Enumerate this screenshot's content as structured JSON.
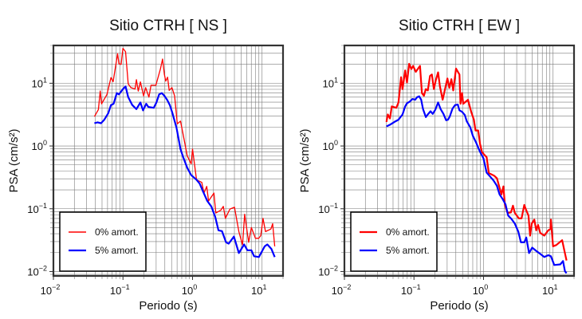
{
  "chart_data": [
    {
      "type": "line",
      "title": "Sitio CTRH [ NS ]",
      "xlabel": "Periodo (s)",
      "ylabel": "PSA (cm/s²)",
      "xscale": "log",
      "yscale": "log",
      "xlim": [
        0.01,
        20
      ],
      "ylim": [
        0.0085,
        40
      ],
      "grid": true,
      "legend_position": "bottom-left",
      "xticks": [
        {
          "base": "10",
          "exp": "−2",
          "v": 0.01
        },
        {
          "base": "10",
          "exp": "−1",
          "v": 0.1
        },
        {
          "base": "10",
          "exp": "0",
          "v": 1
        },
        {
          "base": "10",
          "exp": "1",
          "v": 10
        }
      ],
      "yticks": [
        {
          "base": "10",
          "exp": "−2",
          "v": 0.01
        },
        {
          "base": "10",
          "exp": "−1",
          "v": 0.1
        },
        {
          "base": "10",
          "exp": "0",
          "v": 1
        },
        {
          "base": "10",
          "exp": "1",
          "v": 10
        }
      ],
      "series": [
        {
          "name": "0% amort.",
          "color": "#ff0000",
          "x": [
            0.0388,
            0.0443,
            0.0471,
            0.0492,
            0.0588,
            0.0672,
            0.0721,
            0.0838,
            0.0876,
            0.094,
            0.1,
            0.109,
            0.119,
            0.13,
            0.149,
            0.156,
            0.166,
            0.178,
            0.198,
            0.212,
            0.236,
            0.253,
            0.297,
            0.345,
            0.371,
            0.394,
            0.412,
            0.438,
            0.462,
            0.506,
            0.552,
            0.604,
            0.671,
            0.733,
            0.838,
            0.957,
            1.0,
            1.14,
            1.36,
            1.46,
            1.6,
            1.7,
            2.03,
            2.16,
            2.54,
            2.77,
            2.97,
            3.45,
            4.01,
            4.63,
            5.24,
            5.62,
            6.42,
            7.02,
            8.02,
            8.92,
            9.57,
            10.3,
            11.2,
            13.4,
            14.2,
            15.2
          ],
          "y": [
            2.94,
            3.8,
            7.5,
            4.7,
            6.6,
            12.3,
            10.6,
            29.6,
            20.4,
            20,
            36,
            31.7,
            9.8,
            8.5,
            8.1,
            11.4,
            7.5,
            10.5,
            6.3,
            8.5,
            6.0,
            9.3,
            9.3,
            16.8,
            24.3,
            13.8,
            10.8,
            12.5,
            7.7,
            8.5,
            6.3,
            2.26,
            2.49,
            1.53,
            0.7,
            0.52,
            0.89,
            0.29,
            0.263,
            0.178,
            0.227,
            0.133,
            0.178,
            0.0855,
            0.0944,
            0.109,
            0.0703,
            0.099,
            0.106,
            0.0432,
            0.0265,
            0.0815,
            0.0292,
            0.05,
            0.0338,
            0.0338,
            0.0373,
            0.0703,
            0.0432,
            0.0475,
            0.0578,
            0.0252
          ]
        },
        {
          "name": "5% amort.",
          "color": "#0000ff",
          "x": [
            0.0388,
            0.0431,
            0.0484,
            0.0538,
            0.0614,
            0.0672,
            0.0733,
            0.0816,
            0.0876,
            0.1,
            0.109,
            0.119,
            0.136,
            0.156,
            0.178,
            0.194,
            0.216,
            0.232,
            0.277,
            0.303,
            0.331,
            0.361,
            0.394,
            0.431,
            0.471,
            0.515,
            0.588,
            0.671,
            0.733,
            0.838,
            0.957,
            1.14,
            1.27,
            1.42,
            1.63,
            1.86,
            2.12,
            2.36,
            2.65,
            3.03,
            3.31,
            3.94,
            4.63,
            5.52,
            6.14,
            7.02,
            7.67,
            9.0,
            10.9,
            11.9,
            13.6,
            15.2
          ],
          "y": [
            2.31,
            2.38,
            2.31,
            2.62,
            3.34,
            4.49,
            4.71,
            6.97,
            6.63,
            8.07,
            8.89,
            6.01,
            4.49,
            3.87,
            4.94,
            3.69,
            4.71,
            4.19,
            4.06,
            4.94,
            6.63,
            6.97,
            6.31,
            5.45,
            4.49,
            3.34,
            1.95,
            0.89,
            0.667,
            0.451,
            0.343,
            0.29,
            0.251,
            0.187,
            0.133,
            0.109,
            0.0738,
            0.0453,
            0.044,
            0.0292,
            0.0278,
            0.0361,
            0.0197,
            0.027,
            0.0218,
            0.0218,
            0.0175,
            0.017,
            0.0252,
            0.027,
            0.0229,
            0.017
          ]
        }
      ]
    },
    {
      "type": "line",
      "title": "Sitio CTRH [ EW ]",
      "xlabel": "Periodo (s)",
      "ylabel": "PSA (cm/s²)",
      "xscale": "log",
      "yscale": "log",
      "xlim": [
        0.01,
        20
      ],
      "ylim": [
        0.0085,
        40
      ],
      "grid": true,
      "legend_position": "bottom-left",
      "xticks": [
        {
          "base": "10",
          "exp": "−2",
          "v": 0.01
        },
        {
          "base": "10",
          "exp": "−1",
          "v": 0.1
        },
        {
          "base": "10",
          "exp": "0",
          "v": 1
        },
        {
          "base": "10",
          "exp": "1",
          "v": 10
        }
      ],
      "yticks": [
        {
          "base": "10",
          "exp": "−2",
          "v": 0.01
        },
        {
          "base": "10",
          "exp": "−1",
          "v": 0.1
        },
        {
          "base": "10",
          "exp": "0",
          "v": 1
        },
        {
          "base": "10",
          "exp": "1",
          "v": 10
        }
      ],
      "series": [
        {
          "name": "0% amort.",
          "color": "#ff0000",
          "x": [
            0.0402,
            0.042,
            0.0451,
            0.048,
            0.0557,
            0.0598,
            0.0653,
            0.0684,
            0.0747,
            0.0794,
            0.0853,
            0.0916,
            0.0973,
            0.106,
            0.122,
            0.13,
            0.139,
            0.148,
            0.158,
            0.17,
            0.181,
            0.193,
            0.207,
            0.222,
            0.236,
            0.258,
            0.303,
            0.322,
            0.345,
            0.367,
            0.402,
            0.451,
            0.467,
            0.492,
            0.51,
            0.598,
            0.665,
            0.727,
            0.767,
            0.838,
            0.891,
            0.948,
            1.02,
            1.11,
            1.19,
            1.42,
            1.56,
            1.7,
            1.81,
            1.93,
            2.03,
            2.22,
            2.47,
            2.65,
            2.82,
            3.22,
            3.52,
            3.85,
            4.12,
            4.43,
            4.67,
            4.92,
            5.38,
            5.73,
            6.09,
            6.54,
            7.47,
            8.53,
            9.15,
            9.3,
            10.0,
            11.1,
            13.5,
            14.5,
            15.6
          ],
          "y": [
            2.42,
            3.18,
            2.75,
            4.28,
            4.06,
            4.94,
            12.5,
            8.07,
            16.0,
            10.3,
            20.4,
            16.8,
            18.9,
            15.2,
            18.9,
            6.97,
            6.31,
            8.07,
            7.67,
            13.1,
            13.8,
            8.07,
            11.4,
            14.9,
            8.89,
            5.45,
            11.9,
            8.47,
            11.6,
            7.67,
            17.1,
            13.8,
            4.71,
            6.97,
            4.71,
            5.45,
            3.51,
            2.62,
            1.77,
            1.77,
            1.08,
            0.807,
            0.731,
            0.664,
            0.371,
            0.336,
            0.305,
            0.216,
            0.169,
            0.227,
            0.115,
            0.0855,
            0.0873,
            0.112,
            0.0855,
            0.0703,
            0.0703,
            0.115,
            0.0944,
            0.0776,
            0.0373,
            0.0578,
            0.067,
            0.0453,
            0.0551,
            0.0411,
            0.0373,
            0.0453,
            0.0475,
            0.067,
            0.0252,
            0.0264,
            0.0315,
            0.0218,
            0.015
          ]
        },
        {
          "name": "5% amort.",
          "color": "#0000ff",
          "x": [
            0.0402,
            0.0459,
            0.0523,
            0.0598,
            0.0684,
            0.0747,
            0.0794,
            0.0868,
            0.0949,
            0.104,
            0.111,
            0.119,
            0.127,
            0.135,
            0.148,
            0.158,
            0.173,
            0.186,
            0.203,
            0.222,
            0.242,
            0.265,
            0.29,
            0.308,
            0.327,
            0.358,
            0.391,
            0.427,
            0.451,
            0.492,
            0.538,
            0.573,
            0.643,
            0.701,
            0.78,
            0.891,
            1.0,
            1.11,
            1.24,
            1.39,
            1.56,
            1.7,
            1.89,
            2.07,
            2.26,
            2.51,
            2.82,
            3.16,
            3.45,
            3.85,
            4.12,
            4.51,
            5.01,
            5.73,
            6.42,
            7.47,
            8.53,
            9.3,
            10.4,
            12.7,
            13.9,
            14.8,
            15.6
          ],
          "y": [
            2.05,
            2.2,
            2.42,
            2.62,
            3.18,
            4.28,
            4.81,
            5.09,
            5.61,
            5.45,
            6.01,
            6.19,
            5.45,
            3.87,
            2.89,
            3.18,
            3.58,
            3.25,
            3.8,
            4.94,
            3.87,
            3.25,
            2.57,
            2.62,
            2.94,
            3.95,
            4.49,
            4.57,
            3.69,
            3.51,
            3.12,
            2.49,
            1.99,
            1.46,
            1.14,
            0.807,
            0.631,
            0.376,
            0.328,
            0.282,
            0.232,
            0.169,
            0.142,
            0.117,
            0.0776,
            0.069,
            0.0578,
            0.0432,
            0.0292,
            0.0292,
            0.0348,
            0.0197,
            0.024,
            0.0213,
            0.0194,
            0.017,
            0.0182,
            0.0175,
            0.0127,
            0.013,
            0.0147,
            0.0101,
            0.0094
          ]
        }
      ]
    }
  ]
}
